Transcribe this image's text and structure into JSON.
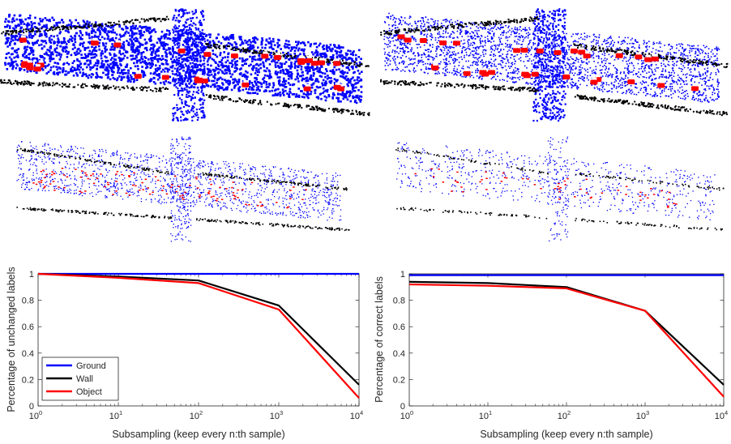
{
  "colors": {
    "ground": "#0000ff",
    "wall": "#000000",
    "object": "#ff0000"
  },
  "point_cloud_panels": [
    {
      "name": "dense-labeled-cloud-left",
      "legend": "blue=Ground, black=Wall, red=Object"
    },
    {
      "name": "dense-labeled-cloud-right"
    },
    {
      "name": "subsampled-cloud-left"
    },
    {
      "name": "subsampled-cloud-right"
    }
  ],
  "chart_data": [
    {
      "type": "line",
      "x_scale": "log",
      "x": [
        1,
        10,
        100,
        1000,
        10000
      ],
      "xlim": [
        1,
        10000
      ],
      "ylim": [
        0,
        1
      ],
      "xlabel": "Subsampling (keep every n:th sample)",
      "ylabel": "Percentage of unchanged labels",
      "x_ticks": [
        {
          "base": "10",
          "exp": "0"
        },
        {
          "base": "10",
          "exp": "1"
        },
        {
          "base": "10",
          "exp": "2"
        },
        {
          "base": "10",
          "exp": "3"
        },
        {
          "base": "10",
          "exp": "4"
        }
      ],
      "y_ticks": [
        "0",
        "0.2",
        "0.4",
        "0.6",
        "0.8",
        "1"
      ],
      "grid": false,
      "legend_position": "bottom-left",
      "series": [
        {
          "name": "Ground",
          "color": "#0000ff",
          "values": [
            1.0,
            1.0,
            1.0,
            1.0,
            1.0
          ]
        },
        {
          "name": "Wall",
          "color": "#000000",
          "values": [
            1.0,
            0.98,
            0.95,
            0.76,
            0.16
          ]
        },
        {
          "name": "Object",
          "color": "#ff0000",
          "values": [
            1.0,
            0.97,
            0.93,
            0.73,
            0.06
          ]
        }
      ]
    },
    {
      "type": "line",
      "x_scale": "log",
      "x": [
        1,
        10,
        100,
        1000,
        10000
      ],
      "xlim": [
        1,
        10000
      ],
      "ylim": [
        0,
        1
      ],
      "xlabel": "Subsampling (keep every n:th sample)",
      "ylabel": "Percentage of correct labels",
      "x_ticks": [
        {
          "base": "10",
          "exp": "0"
        },
        {
          "base": "10",
          "exp": "1"
        },
        {
          "base": "10",
          "exp": "2"
        },
        {
          "base": "10",
          "exp": "3"
        },
        {
          "base": "10",
          "exp": "4"
        }
      ],
      "y_ticks": [
        "0",
        "0.2",
        "0.4",
        "0.6",
        "0.8",
        "1"
      ],
      "grid": false,
      "series": [
        {
          "color": "#0000ff",
          "values": [
            0.99,
            0.99,
            0.99,
            0.99,
            0.99
          ]
        },
        {
          "color": "#000000",
          "values": [
            0.94,
            0.93,
            0.9,
            0.72,
            0.16
          ]
        },
        {
          "color": "#ff0000",
          "values": [
            0.92,
            0.91,
            0.89,
            0.72,
            0.07
          ]
        }
      ]
    }
  ]
}
